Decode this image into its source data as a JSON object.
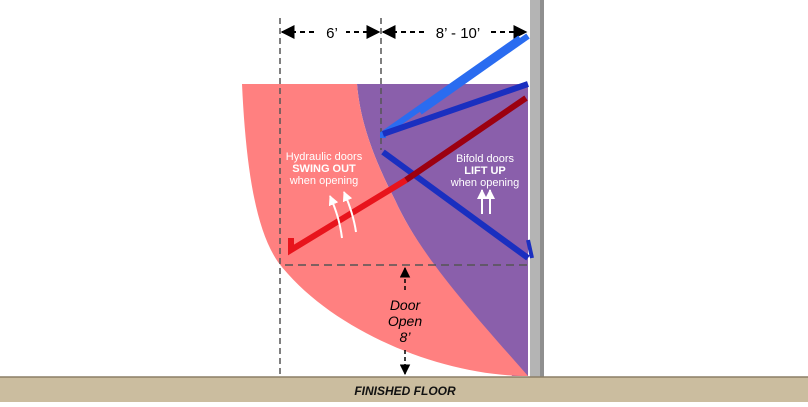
{
  "dimensions": {
    "left_width": "6’",
    "right_width": "8’ - 10’"
  },
  "hydraulic": {
    "line1": "Hydraulic doors",
    "line2": "SWING OUT",
    "line3": "when opening"
  },
  "bifold": {
    "line1": "Bifold doors",
    "line2": "LIFT UP",
    "line3": "when opening"
  },
  "door_open": {
    "line1": "Door",
    "line2": "Open",
    "line3": "8’"
  },
  "floor_label": "FINISHED FLOOR",
  "colors": {
    "hydraulic_zone": "#ff8080",
    "bifold_zone": "#8a5fab",
    "hydraulic_door": "#e8141c",
    "hydraulic_door_dark": "#9c0010",
    "bifold_door_dark": "#1a2fc0",
    "bifold_door_light": "#2a6cf0",
    "wall": "#b4b4b4",
    "floor": "#cbbd9f"
  }
}
